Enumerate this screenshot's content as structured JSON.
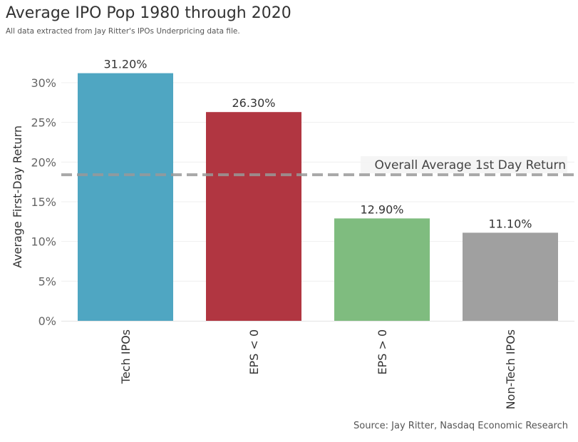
{
  "header": {
    "title": "Average IPO Pop 1980 through 2020",
    "subtitle": "All data extracted from Jay Ritter's IPOs Underpricing data file."
  },
  "footer": {
    "source": "Source: Jay Ritter, Nasdaq Economic Research"
  },
  "chart_data": {
    "type": "bar",
    "title": "Average IPO Pop 1980 through 2020",
    "xlabel": "",
    "ylabel": "Average First-Day Return",
    "ylim": [
      0,
      33
    ],
    "y_ticks": [
      0,
      5,
      10,
      15,
      20,
      25,
      30
    ],
    "y_tick_labels": [
      "0%",
      "5%",
      "10%",
      "15%",
      "20%",
      "25%",
      "30%"
    ],
    "categories": [
      "Tech IPOs",
      "EPS < 0",
      "EPS > 0",
      "Non-Tech IPOs"
    ],
    "values": [
      31.2,
      26.3,
      12.9,
      11.1
    ],
    "value_labels": [
      "31.20%",
      "26.30%",
      "12.90%",
      "11.10%"
    ],
    "colors": [
      "#4fa6c2",
      "#b13641",
      "#7fbc7f",
      "#a0a0a0"
    ],
    "reference_line": {
      "label": "Overall Average 1st Day Return",
      "value": 18.4,
      "style": "dashed",
      "color": "#999999"
    },
    "grid": true
  }
}
